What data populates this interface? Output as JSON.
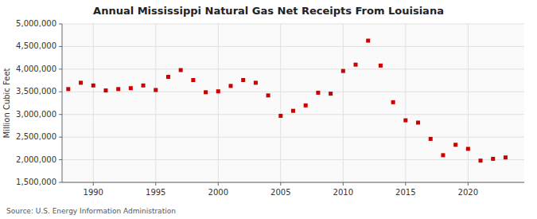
{
  "chart_data": {
    "type": "scatter",
    "title": "Annual Mississippi Natural Gas Net Receipts From Louisiana",
    "ylabel": "Million Cubic Feet",
    "source": "Source: U.S. Energy Information Administration",
    "color": "#cc0000",
    "marker": "square",
    "grid": true,
    "xlim": [
      1987.5,
      2024.5
    ],
    "ylim": [
      1500000,
      5000000
    ],
    "xticks": [
      1990,
      1995,
      2000,
      2005,
      2010,
      2015,
      2020
    ],
    "yticks": [
      {
        "value": 1500000,
        "label": "1,500,000"
      },
      {
        "value": 2000000,
        "label": "2,000,000"
      },
      {
        "value": 2500000,
        "label": "2,500,000"
      },
      {
        "value": 3000000,
        "label": "3,000,000"
      },
      {
        "value": 3500000,
        "label": "3,500,000"
      },
      {
        "value": 4000000,
        "label": "4,000,000"
      },
      {
        "value": 4500000,
        "label": "4,500,000"
      },
      {
        "value": 5000000,
        "label": "5,000,000"
      }
    ],
    "x": [
      1988,
      1989,
      1990,
      1991,
      1992,
      1993,
      1994,
      1995,
      1996,
      1997,
      1998,
      1999,
      2000,
      2001,
      2002,
      2003,
      2004,
      2005,
      2006,
      2007,
      2008,
      2009,
      2010,
      2011,
      2012,
      2013,
      2014,
      2015,
      2016,
      2017,
      2018,
      2019,
      2020,
      2021,
      2022,
      2023
    ],
    "values": [
      3560000,
      3700000,
      3640000,
      3530000,
      3560000,
      3580000,
      3640000,
      3540000,
      3830000,
      3980000,
      3760000,
      3490000,
      3510000,
      3630000,
      3760000,
      3700000,
      3420000,
      2970000,
      3080000,
      3200000,
      3480000,
      3460000,
      3960000,
      4100000,
      4630000,
      4080000,
      3270000,
      2870000,
      2820000,
      2460000,
      2100000,
      2330000,
      2240000,
      1980000,
      2020000,
      2050000
    ]
  }
}
